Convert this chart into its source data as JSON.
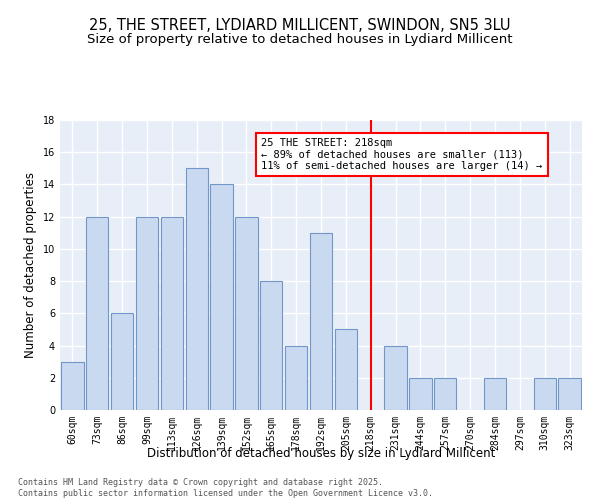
{
  "title": "25, THE STREET, LYDIARD MILLICENT, SWINDON, SN5 3LU",
  "subtitle": "Size of property relative to detached houses in Lydiard Millicent",
  "xlabel": "Distribution of detached houses by size in Lydiard Millicent",
  "ylabel": "Number of detached properties",
  "categories": [
    "60sqm",
    "73sqm",
    "86sqm",
    "99sqm",
    "113sqm",
    "126sqm",
    "139sqm",
    "152sqm",
    "165sqm",
    "178sqm",
    "192sqm",
    "205sqm",
    "218sqm",
    "231sqm",
    "244sqm",
    "257sqm",
    "270sqm",
    "284sqm",
    "297sqm",
    "310sqm",
    "323sqm"
  ],
  "values": [
    3,
    12,
    6,
    12,
    12,
    15,
    14,
    12,
    8,
    4,
    11,
    5,
    0,
    4,
    2,
    2,
    0,
    2,
    0,
    2,
    2
  ],
  "bar_color": "#c9d9f0",
  "bar_edge_color": "#7097c8",
  "highlight_index": 12,
  "annotation_line1": "25 THE STREET: 218sqm",
  "annotation_line2": "← 89% of detached houses are smaller (113)",
  "annotation_line3": "11% of semi-detached houses are larger (14) →",
  "annotation_box_color": "white",
  "annotation_box_edge_color": "red",
  "vline_color": "red",
  "ylim": [
    0,
    18
  ],
  "yticks": [
    0,
    2,
    4,
    6,
    8,
    10,
    12,
    14,
    16,
    18
  ],
  "background_color": "#e8eef8",
  "grid_color": "#ffffff",
  "footer_text": "Contains HM Land Registry data © Crown copyright and database right 2025.\nContains public sector information licensed under the Open Government Licence v3.0.",
  "title_fontsize": 10.5,
  "subtitle_fontsize": 9.5,
  "axis_label_fontsize": 8.5,
  "tick_fontsize": 7,
  "annotation_fontsize": 7.5,
  "footer_fontsize": 6
}
